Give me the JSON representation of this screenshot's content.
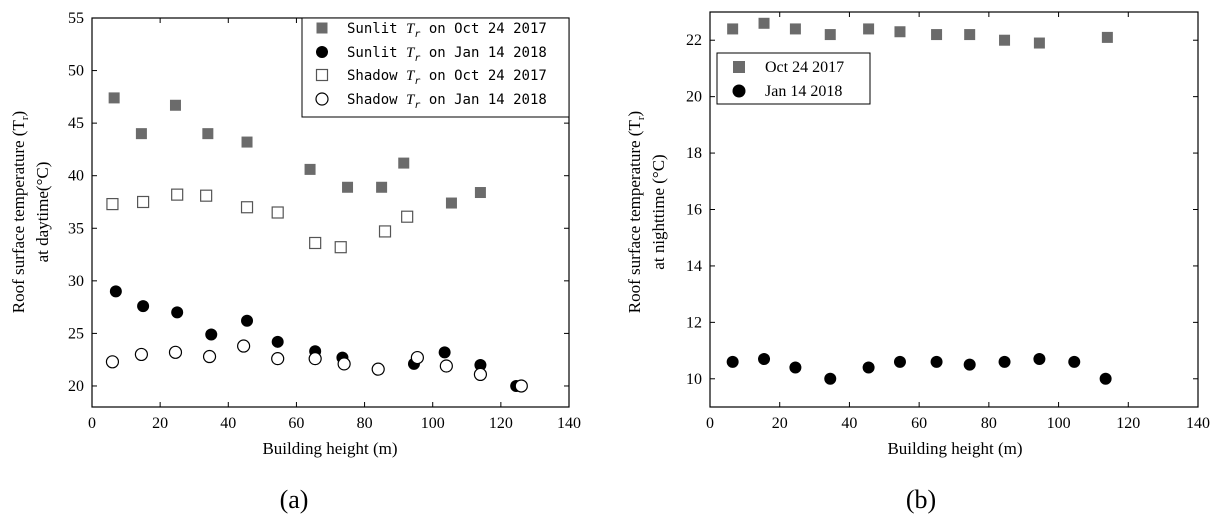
{
  "chart_data": [
    {
      "type": "scatter",
      "panel_label": "(a)",
      "xlabel": "Building height (m)",
      "ylabel_line1": "Roof surface temperature (T",
      "ylabel_sub": "r",
      "ylabel_close": ")",
      "ylabel_line2": "at daytime(°C)",
      "xlim": [
        0,
        140
      ],
      "ylim": [
        18,
        55
      ],
      "xticks": [
        "0",
        "20",
        "40",
        "60",
        "80",
        "100",
        "120",
        "140"
      ],
      "yticks": [
        "20",
        "25",
        "30",
        "35",
        "40",
        "45",
        "50",
        "55"
      ],
      "grid": false,
      "legend_position": "top-right",
      "series": [
        {
          "name": "Sunlit Tr on Oct 24 2017",
          "legend_prefix": "Sunlit ",
          "legend_T": "T",
          "legend_sub": "r",
          "legend_suffix": " on Oct 24 2017",
          "marker": "square-filled",
          "color": "#6b6b6b",
          "x": [
            6.5,
            14.5,
            24.5,
            34,
            45.5,
            64,
            75,
            85,
            91.5,
            105.5,
            114
          ],
          "y": [
            47.4,
            44,
            46.7,
            44,
            43.2,
            40.6,
            38.9,
            38.9,
            41.2,
            37.4,
            38.4
          ]
        },
        {
          "name": "Sunlit Tr on Jan 14 2018",
          "legend_prefix": "Sunlit ",
          "legend_T": "T",
          "legend_sub": "r",
          "legend_suffix": " on Jan 14 2018",
          "marker": "circle-filled",
          "color": "#000000",
          "x": [
            7,
            15,
            25,
            35,
            45.5,
            54.5,
            65.5,
            73.5,
            94.5,
            103.5,
            114,
            124.5
          ],
          "y": [
            29,
            27.6,
            27,
            24.9,
            26.2,
            24.2,
            23.3,
            22.7,
            22.1,
            23.2,
            22,
            20
          ]
        },
        {
          "name": "Shadow Tr on Oct 24 2017",
          "legend_prefix": "Shadow ",
          "legend_T": "T",
          "legend_sub": "r",
          "legend_suffix": " on Oct 24 2017",
          "marker": "square-open",
          "color": "#555555",
          "x": [
            6,
            15,
            25,
            33.5,
            45.5,
            54.5,
            65.5,
            73,
            86,
            92.5
          ],
          "y": [
            37.3,
            37.5,
            38.2,
            38.1,
            37,
            36.5,
            33.6,
            33.2,
            34.7,
            36.1
          ]
        },
        {
          "name": "Shadow Tr on Jan 14 2018",
          "legend_prefix": "Shadow ",
          "legend_T": "T",
          "legend_sub": "r",
          "legend_suffix": " on Jan 14 2018",
          "marker": "circle-open",
          "color": "#000000",
          "x": [
            6,
            14.5,
            24.5,
            34.5,
            44.5,
            54.5,
            65.5,
            74,
            84,
            95.5,
            104,
            114,
            126
          ],
          "y": [
            22.3,
            23,
            23.2,
            22.8,
            23.8,
            22.6,
            22.6,
            22.1,
            21.6,
            22.7,
            21.9,
            21.1,
            20
          ]
        }
      ]
    },
    {
      "type": "scatter",
      "panel_label": "(b)",
      "xlabel": "Building height (m)",
      "ylabel_line1": "Roof surface temperature (T",
      "ylabel_sub": "r",
      "ylabel_close": ")",
      "ylabel_line2": "at nighttime (°C)",
      "xlim": [
        0,
        140
      ],
      "ylim": [
        9,
        23
      ],
      "xticks": [
        "0",
        "20",
        "40",
        "60",
        "80",
        "100",
        "120",
        "140"
      ],
      "yticks": [
        "10",
        "12",
        "14",
        "16",
        "18",
        "20",
        "22"
      ],
      "grid": false,
      "legend_position": "top-left",
      "series": [
        {
          "name": "Oct 24 2017",
          "marker": "square-filled",
          "color": "#6b6b6b",
          "x": [
            6.5,
            15.5,
            24.5,
            34.5,
            45.5,
            54.5,
            65,
            74.5,
            84.5,
            94.5,
            114
          ],
          "y": [
            22.4,
            22.6,
            22.4,
            22.2,
            22.4,
            22.3,
            22.2,
            22.2,
            22,
            21.9,
            22.1
          ]
        },
        {
          "name": "Jan 14 2018",
          "marker": "circle-filled",
          "color": "#000000",
          "x": [
            6.5,
            15.5,
            24.5,
            34.5,
            45.5,
            54.5,
            65,
            74.5,
            84.5,
            94.5,
            104.5,
            113.5
          ],
          "y": [
            10.6,
            10.7,
            10.4,
            10,
            10.4,
            10.6,
            10.6,
            10.5,
            10.6,
            10.7,
            10.6,
            10
          ]
        }
      ]
    }
  ]
}
